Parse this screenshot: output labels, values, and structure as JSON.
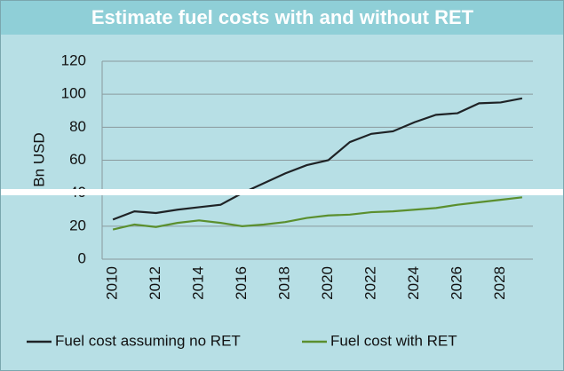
{
  "chart_data": {
    "type": "line",
    "title": "Estimate fuel costs with and without RET",
    "y_label": "Bn USD",
    "categories": [
      "2010",
      null,
      "2012",
      null,
      "2014",
      null,
      "2016",
      null,
      "2018",
      null,
      "2020",
      null,
      "2022",
      null,
      "2024",
      null,
      "2026",
      null,
      "2028",
      null
    ],
    "series": [
      {
        "name": "Fuel cost assuming no RET",
        "color": "#1f2326",
        "values": [
          24,
          29,
          28,
          30,
          31.5,
          33,
          40,
          46,
          52,
          57,
          60,
          71,
          76,
          77.5,
          83,
          87.5,
          88.5,
          94.5,
          95,
          97.5
        ]
      },
      {
        "name": "Fuel cost with RET",
        "color": "#5b8f2e",
        "values": [
          18,
          21,
          19.5,
          22,
          23.5,
          22,
          20,
          21,
          22.5,
          25,
          26.5,
          27,
          28.5,
          29,
          30,
          31,
          33,
          34.5,
          36,
          37.5
        ]
      }
    ],
    "ylim": [
      0,
      120
    ],
    "yticks": [
      0,
      20,
      40,
      60,
      80,
      100,
      120
    ],
    "grid": true
  }
}
